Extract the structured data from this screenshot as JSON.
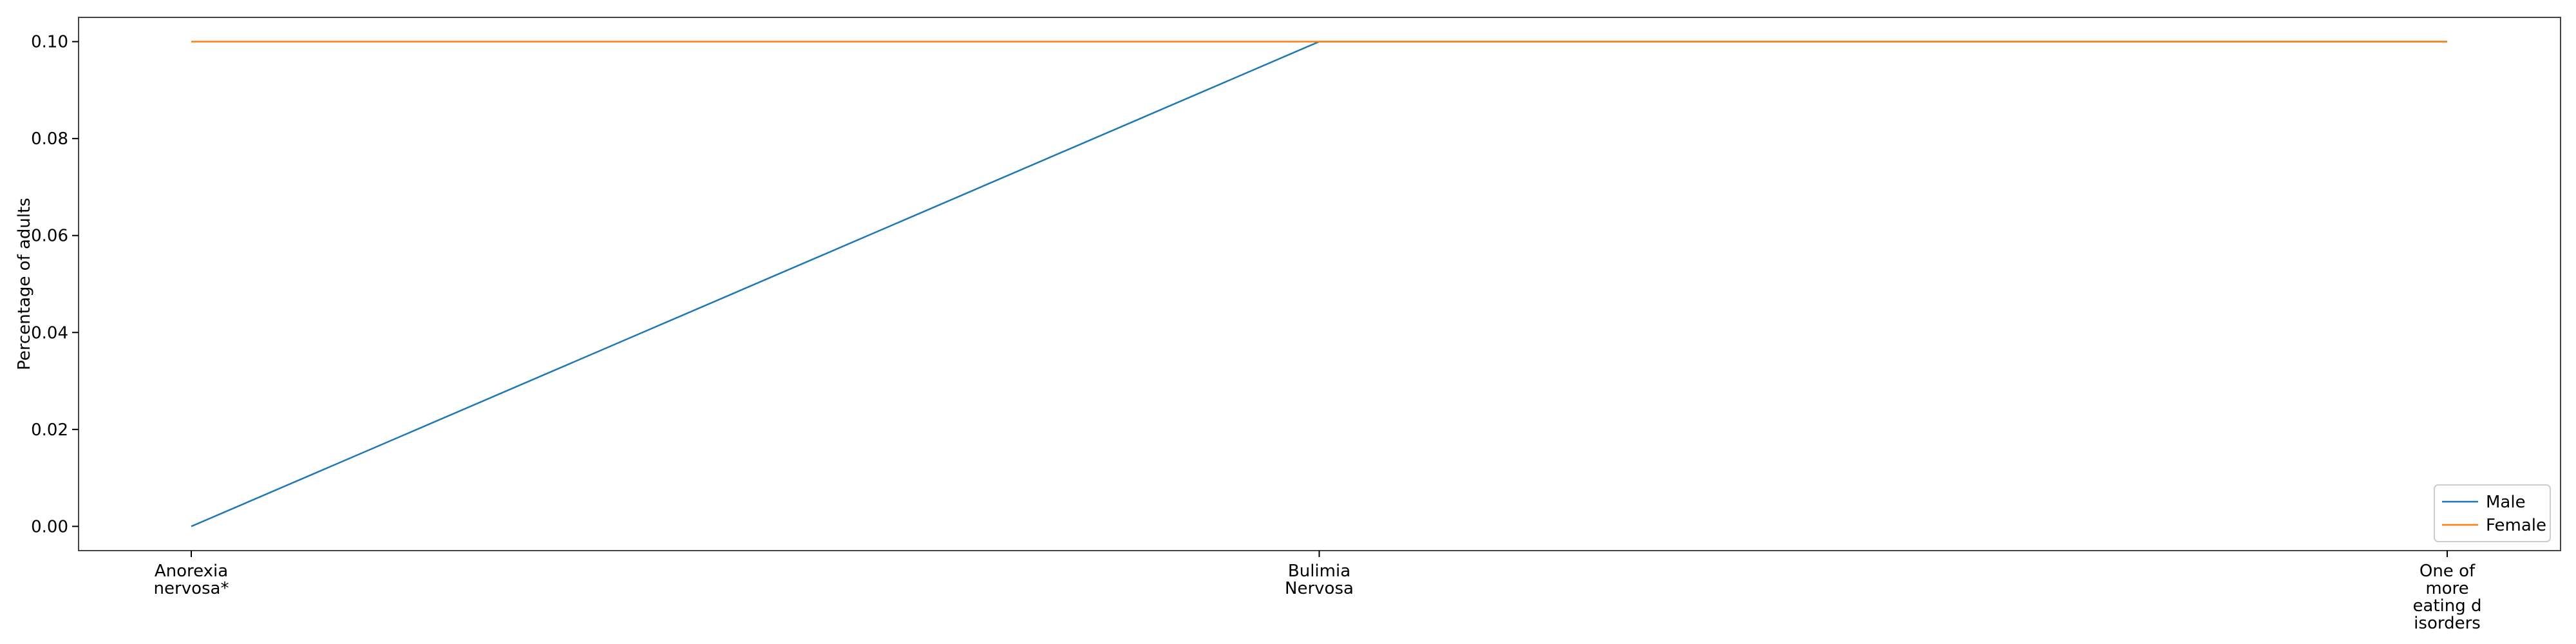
{
  "chart_data": {
    "type": "line",
    "title": "",
    "xlabel": "",
    "ylabel": "Percentage of adults",
    "categories": [
      [
        "Anorexia",
        "nervosa*"
      ],
      [
        "Bulimia",
        "Nervosa"
      ],
      [
        "One of",
        "more",
        "eating d",
        "isorders"
      ]
    ],
    "series": [
      {
        "name": "Male",
        "values": [
          0.0,
          0.1,
          0.1
        ],
        "color": "#1f77b4"
      },
      {
        "name": "Female",
        "values": [
          0.1,
          0.1,
          0.1
        ],
        "color": "#ff7f0e"
      }
    ],
    "ylim": [
      -0.005,
      0.105
    ],
    "yticks": [
      0.0,
      0.02,
      0.04,
      0.06,
      0.08,
      0.1
    ],
    "ytick_labels": [
      "0.00",
      "0.02",
      "0.04",
      "0.06",
      "0.08",
      "0.10"
    ],
    "grid": false,
    "legend_position": "bottom-right"
  }
}
